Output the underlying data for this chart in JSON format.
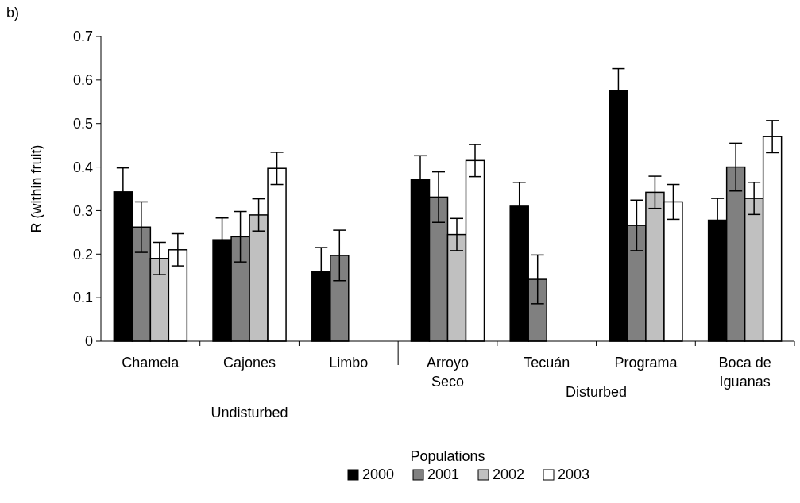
{
  "chart_data": {
    "type": "bar",
    "xlabel": "Populations",
    "ylabel": "R (within fruit)",
    "categories": [
      "Chamela",
      "Cajones",
      "Limbo",
      "Arroyo Seco",
      "Tecuán",
      "Programa",
      "Boca de Iguanas"
    ],
    "series": [
      {
        "name": "2000",
        "color": "#000000",
        "values": [
          0.343,
          0.233,
          0.16,
          0.372,
          0.31,
          0.576,
          0.278
        ],
        "errors": [
          0.055,
          0.05,
          0.055,
          0.054,
          0.055,
          0.05,
          0.05
        ]
      },
      {
        "name": "2001",
        "color": "#808080",
        "values": [
          0.262,
          0.24,
          0.197,
          0.331,
          0.142,
          0.266,
          0.4
        ],
        "errors": [
          0.058,
          0.058,
          0.058,
          0.058,
          0.056,
          0.058,
          0.055
        ]
      },
      {
        "name": "2002",
        "color": "#c0c0c0",
        "values": [
          0.19,
          0.29,
          null,
          0.245,
          null,
          0.342,
          0.328
        ],
        "errors": [
          0.037,
          0.037,
          null,
          0.037,
          null,
          0.037,
          0.037
        ]
      },
      {
        "name": "2003",
        "color": "#ffffff",
        "values": [
          0.21,
          0.397,
          null,
          0.415,
          null,
          0.32,
          0.47
        ],
        "errors": [
          0.037,
          0.037,
          null,
          0.037,
          null,
          0.04,
          0.037
        ]
      }
    ],
    "ylim": [
      0,
      0.7
    ],
    "yticks": [
      0,
      0.1,
      0.2,
      0.3,
      0.4,
      0.5,
      0.6,
      0.7
    ],
    "grid": false,
    "legend": "bottom",
    "annotations": [
      "b)",
      "Undisturbed",
      "Disturbed"
    ]
  }
}
